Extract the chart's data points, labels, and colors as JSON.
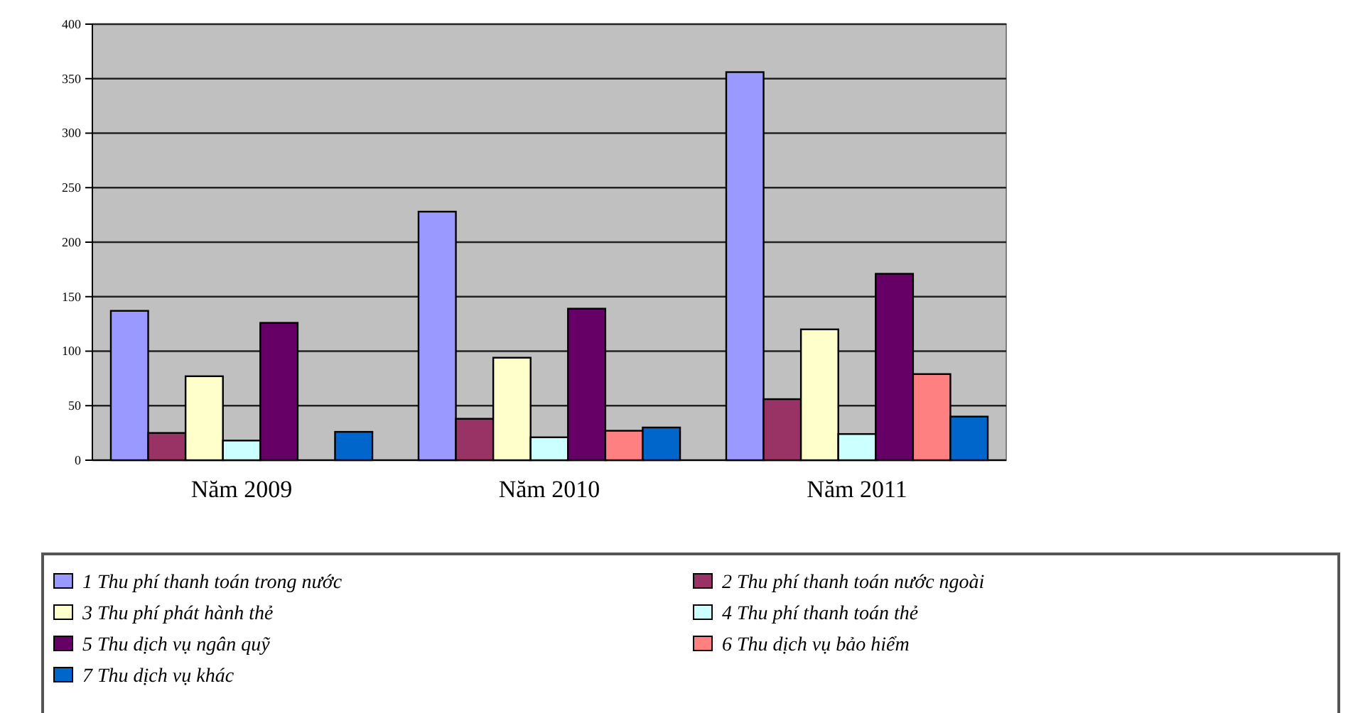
{
  "chart_data": {
    "type": "bar",
    "categories": [
      "Năm 2009",
      "Năm 2010",
      "Năm 2011"
    ],
    "series": [
      {
        "name": "1 Thu phí thanh toán trong nước",
        "color": "#9999ff",
        "values": [
          137,
          228,
          356
        ]
      },
      {
        "name": "2 Thu phí thanh toán nước ngoài",
        "color": "#993366",
        "values": [
          25,
          38,
          56
        ]
      },
      {
        "name": "3 Thu phí phát hành thẻ",
        "color": "#ffffcc",
        "values": [
          77,
          94,
          120
        ]
      },
      {
        "name": "4 Thu phí thanh toán thẻ",
        "color": "#ccffff",
        "values": [
          18,
          21,
          24
        ]
      },
      {
        "name": "5 Thu dịch vụ ngân quỹ",
        "color": "#660066",
        "values": [
          126,
          139,
          171
        ]
      },
      {
        "name": "6 Thu dịch vụ bảo hiểm",
        "color": "#ff8080",
        "values": [
          null,
          27,
          79
        ]
      },
      {
        "name": "7 Thu dịch vụ khác",
        "color": "#0066cc",
        "values": [
          26,
          30,
          40
        ]
      }
    ],
    "ylim": [
      0,
      400
    ],
    "yticks": [
      0,
      50,
      100,
      150,
      200,
      250,
      300,
      350,
      400
    ],
    "grid": "y",
    "legend": "bottom"
  }
}
